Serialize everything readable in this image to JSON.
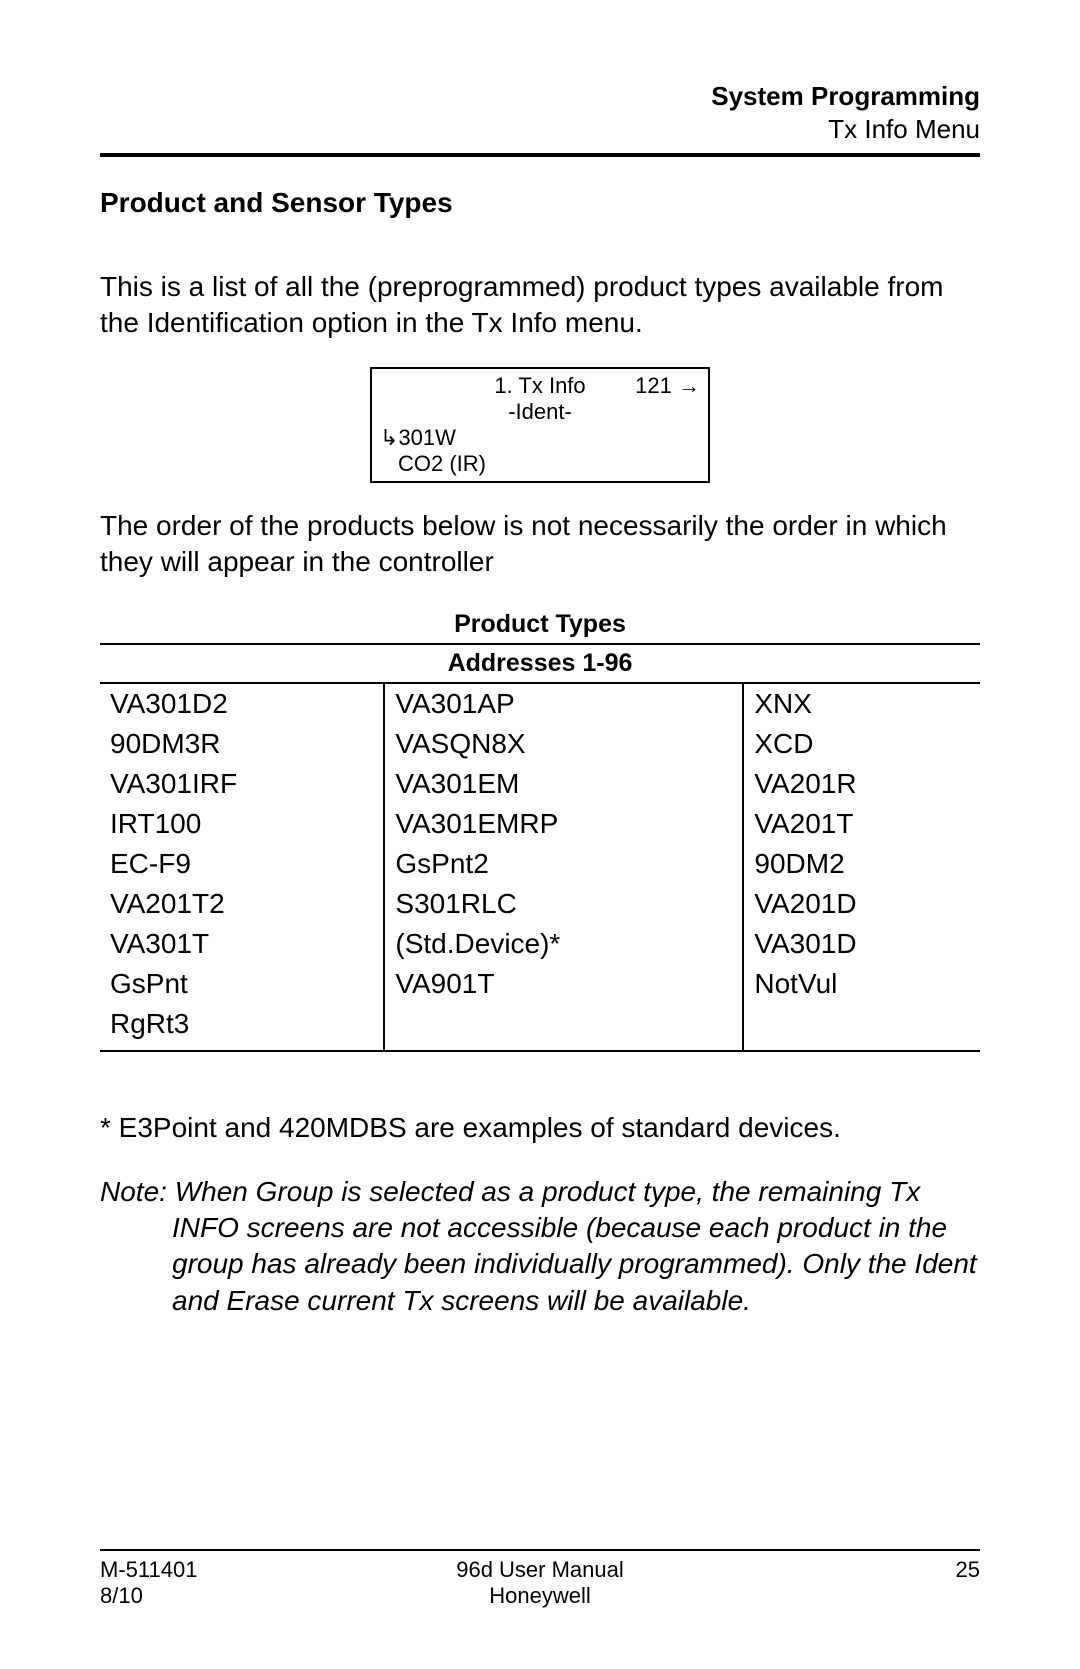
{
  "header": {
    "section": "System Programming",
    "subsection": "Tx Info Menu"
  },
  "section_title": "Product and Sensor Types",
  "intro_text": "This is a list of all the (preprogrammed) product types available from the Identification option in the Tx Info menu.",
  "lcd": {
    "line1_center": "1. Tx Info",
    "line1_right_num": "121",
    "line2": "-Ident-",
    "line3_prefix": "↪",
    "line3": "301W",
    "line4": "CO2 (IR)",
    "border_color": "#000000",
    "font_size": 22
  },
  "order_text": "The order of the products below is not necessarily the order in which they will appear in the controller",
  "table": {
    "title": "Product Types",
    "subtitle": "Addresses 1-96",
    "title_fontsize": 25,
    "cell_fontsize": 28,
    "border_color": "#000000",
    "columns": [
      [
        "VA301D2",
        "90DM3R",
        "VA301IRF",
        "IRT100",
        "EC-F9",
        "VA201T2",
        "VA301T",
        "GsPnt",
        "RgRt3"
      ],
      [
        "VA301AP",
        "VASQN8X",
        "VA301EM",
        "VA301EMRP",
        "GsPnt2",
        "S301RLC",
        "(Std.Device)*",
        "VA901T",
        ""
      ],
      [
        "XNX",
        "XCD",
        "VA201R",
        "VA201T",
        "90DM2",
        "VA201D",
        "VA301D",
        "NotVul",
        ""
      ]
    ]
  },
  "footnote": "* E3Point and 420MDBS are examples of standard devices.",
  "note_label": "Note:",
  "note_text_first": "When Group is selected as a product type, the remaining Tx",
  "note_text_rest": "INFO screens are not accessible (because each product in the group has already been individually programmed).  Only the Ident and Erase current Tx screens will be available.",
  "footer": {
    "left1": "M-511401",
    "left2": "8/10",
    "center1": "96d User Manual",
    "center2": "Honeywell",
    "right1": "25"
  },
  "colors": {
    "text": "#000000",
    "background": "#ffffff",
    "rule": "#000000"
  }
}
